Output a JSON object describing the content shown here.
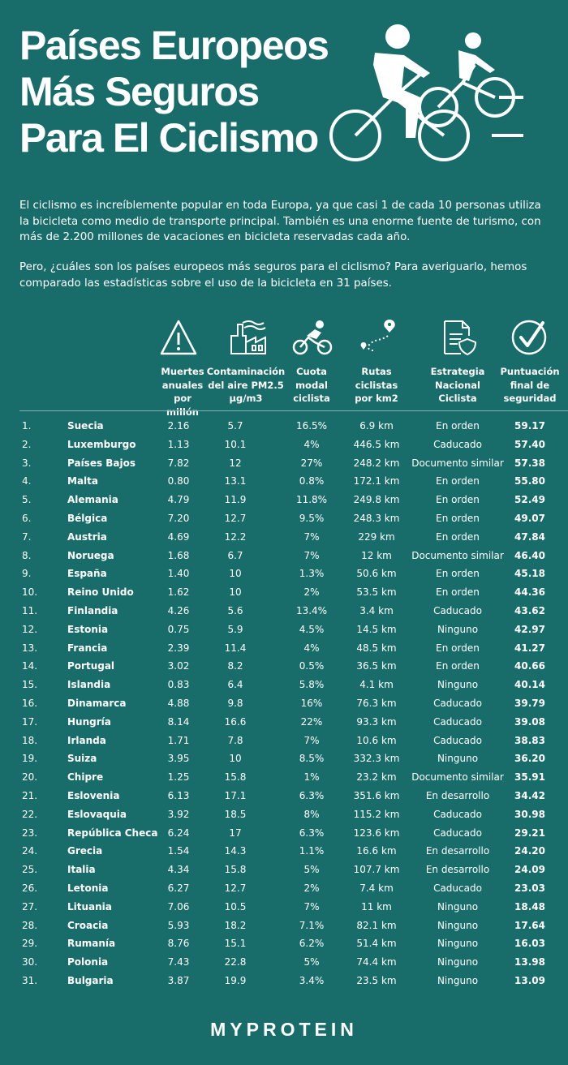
{
  "title_lines": [
    "Países Europeos",
    "Más Seguros",
    "Para El Ciclismo"
  ],
  "intro_paragraphs": [
    "El ciclismo es increíblemente popular en toda Europa, ya que casi 1 de cada 10 personas utiliza la bicicleta como medio de transporte principal. También es una enorme fuente de turismo, con más de 2.200 millones de vacaciones en bicicleta reservadas cada año.",
    "Pero, ¿cuáles son los países europeos más seguros para el ciclismo? Para averiguarlo, hemos comparado las estadísticas sobre el uso de la bicicleta en 31 países."
  ],
  "columns": [
    {
      "key": "deaths",
      "icon": "warning-icon",
      "lines": [
        "Muertes",
        "anuales por",
        "millón"
      ]
    },
    {
      "key": "pm25",
      "icon": "factory-icon",
      "lines": [
        "Contaminación",
        "del aire PM2.5",
        "µg/m3"
      ]
    },
    {
      "key": "share",
      "icon": "cyclist-icon",
      "lines": [
        "Cuota",
        "modal",
        "ciclista"
      ]
    },
    {
      "key": "routes",
      "icon": "route-icon",
      "lines": [
        "Rutas",
        "ciclistas",
        "por km2"
      ]
    },
    {
      "key": "strategy",
      "icon": "document-shield-icon",
      "lines": [
        "Estrategia",
        "Nacional",
        "Ciclista"
      ]
    },
    {
      "key": "score",
      "icon": "check-circle-icon",
      "lines": [
        "Puntuación",
        "final de",
        "seguridad"
      ]
    }
  ],
  "rows": [
    {
      "rank": "1.",
      "country": "Suecia",
      "deaths": "2.16",
      "pm25": "5.7",
      "share": "16.5%",
      "routes": "6.9 km",
      "strategy": "En orden",
      "score": "59.17"
    },
    {
      "rank": "2.",
      "country": "Luxemburgo",
      "deaths": "1.13",
      "pm25": "10.1",
      "share": "4%",
      "routes": "446.5 km",
      "strategy": "Caducado",
      "score": "57.40"
    },
    {
      "rank": "3.",
      "country": "Países Bajos",
      "deaths": "7.82",
      "pm25": "12",
      "share": "27%",
      "routes": "248.2 km",
      "strategy": "Documento similar",
      "score": "57.38"
    },
    {
      "rank": "4.",
      "country": "Malta",
      "deaths": "0.80",
      "pm25": "13.1",
      "share": "0.8%",
      "routes": "172.1 km",
      "strategy": "En orden",
      "score": "55.80"
    },
    {
      "rank": "5.",
      "country": "Alemania",
      "deaths": "4.79",
      "pm25": "11.9",
      "share": "11.8%",
      "routes": "249.8 km",
      "strategy": "En orden",
      "score": "52.49"
    },
    {
      "rank": "6.",
      "country": "Bélgica",
      "deaths": "7.20",
      "pm25": "12.7",
      "share": "9.5%",
      "routes": "248.3 km",
      "strategy": "En orden",
      "score": "49.07"
    },
    {
      "rank": "7.",
      "country": "Austria",
      "deaths": "4.69",
      "pm25": "12.2",
      "share": "7%",
      "routes": "229 km",
      "strategy": "En orden",
      "score": "47.84"
    },
    {
      "rank": "8.",
      "country": "Noruega",
      "deaths": "1.68",
      "pm25": "6.7",
      "share": "7%",
      "routes": "12 km",
      "strategy": "Documento similar",
      "score": "46.40"
    },
    {
      "rank": "9.",
      "country": "España",
      "deaths": "1.40",
      "pm25": "10",
      "share": "1.3%",
      "routes": "50.6 km",
      "strategy": "En orden",
      "score": "45.18"
    },
    {
      "rank": "10.",
      "country": "Reino Unido",
      "deaths": "1.62",
      "pm25": "10",
      "share": "2%",
      "routes": "53.5 km",
      "strategy": "En orden",
      "score": "44.36"
    },
    {
      "rank": "11.",
      "country": "Finlandia",
      "deaths": "4.26",
      "pm25": "5.6",
      "share": "13.4%",
      "routes": "3.4 km",
      "strategy": "Caducado",
      "score": "43.62"
    },
    {
      "rank": "12.",
      "country": "Estonia",
      "deaths": "0.75",
      "pm25": "5.9",
      "share": "4.5%",
      "routes": "14.5 km",
      "strategy": "Ninguno",
      "score": "42.97"
    },
    {
      "rank": "13.",
      "country": "Francia",
      "deaths": "2.39",
      "pm25": "11.4",
      "share": "4%",
      "routes": "48.5 km",
      "strategy": "En orden",
      "score": "41.27"
    },
    {
      "rank": "14.",
      "country": "Portugal",
      "deaths": "3.02",
      "pm25": "8.2",
      "share": "0.5%",
      "routes": "36.5 km",
      "strategy": "En orden",
      "score": "40.66"
    },
    {
      "rank": "15.",
      "country": "Islandia",
      "deaths": "0.83",
      "pm25": "6.4",
      "share": "5.8%",
      "routes": "4.1 km",
      "strategy": "Ninguno",
      "score": "40.14"
    },
    {
      "rank": "16.",
      "country": "Dinamarca",
      "deaths": "4.88",
      "pm25": "9.8",
      "share": "16%",
      "routes": "76.3 km",
      "strategy": "Caducado",
      "score": "39.79"
    },
    {
      "rank": "17.",
      "country": "Hungría",
      "deaths": "8.14",
      "pm25": "16.6",
      "share": "22%",
      "routes": "93.3 km",
      "strategy": "Caducado",
      "score": "39.08"
    },
    {
      "rank": "18.",
      "country": "Irlanda",
      "deaths": "1.71",
      "pm25": "7.8",
      "share": "7%",
      "routes": "10.6 km",
      "strategy": "Caducado",
      "score": "38.83"
    },
    {
      "rank": "19.",
      "country": "Suiza",
      "deaths": "3.95",
      "pm25": "10",
      "share": "8.5%",
      "routes": "332.3 km",
      "strategy": "Ninguno",
      "score": "36.20"
    },
    {
      "rank": "20.",
      "country": "Chipre",
      "deaths": "1.25",
      "pm25": "15.8",
      "share": "1%",
      "routes": "23.2 km",
      "strategy": "Documento similar",
      "score": "35.91"
    },
    {
      "rank": "21.",
      "country": "Eslovenia",
      "deaths": "6.13",
      "pm25": "17.1",
      "share": "6.3%",
      "routes": "351.6 km",
      "strategy": "En desarrollo",
      "score": "34.42"
    },
    {
      "rank": "22.",
      "country": "Eslovaquia",
      "deaths": "3.92",
      "pm25": "18.5",
      "share": "8%",
      "routes": "115.2 km",
      "strategy": "Caducado",
      "score": "30.98"
    },
    {
      "rank": "23.",
      "country": "República Checa",
      "deaths": "6.24",
      "pm25": "17",
      "share": "6.3%",
      "routes": "123.6 km",
      "strategy": "Caducado",
      "score": "29.21"
    },
    {
      "rank": "24.",
      "country": "Grecia",
      "deaths": "1.54",
      "pm25": "14.3",
      "share": "1.1%",
      "routes": "16.6 km",
      "strategy": "En desarrollo",
      "score": "24.20"
    },
    {
      "rank": "25.",
      "country": "Italia",
      "deaths": "4.34",
      "pm25": "15.8",
      "share": "5%",
      "routes": "107.7 km",
      "strategy": "En desarrollo",
      "score": "24.09"
    },
    {
      "rank": "26.",
      "country": "Letonia",
      "deaths": "6.27",
      "pm25": "12.7",
      "share": "2%",
      "routes": "7.4 km",
      "strategy": "Caducado",
      "score": "23.03"
    },
    {
      "rank": "27.",
      "country": "Lituania",
      "deaths": "7.06",
      "pm25": "10.5",
      "share": "7%",
      "routes": "11 km",
      "strategy": "Ninguno",
      "score": "18.48"
    },
    {
      "rank": "28.",
      "country": "Croacia",
      "deaths": "5.93",
      "pm25": "18.2",
      "share": "7.1%",
      "routes": "82.1 km",
      "strategy": "Ninguno",
      "score": "17.64"
    },
    {
      "rank": "29.",
      "country": "Rumanía",
      "deaths": "8.76",
      "pm25": "15.1",
      "share": "6.2%",
      "routes": "51.4 km",
      "strategy": "Ninguno",
      "score": "16.03"
    },
    {
      "rank": "30.",
      "country": "Polonia",
      "deaths": "7.43",
      "pm25": "22.8",
      "share": "5%",
      "routes": "74.4 km",
      "strategy": "Ninguno",
      "score": "13.98"
    },
    {
      "rank": "31.",
      "country": "Bulgaria",
      "deaths": "3.87",
      "pm25": "19.9",
      "share": "3.4%",
      "routes": "23.5 km",
      "strategy": "Ninguno",
      "score": "13.09"
    }
  ],
  "brand": "MYPROTEIN",
  "colors": {
    "background": "#186d6b",
    "text": "#ffffff",
    "rule": "#7fb3b0"
  }
}
